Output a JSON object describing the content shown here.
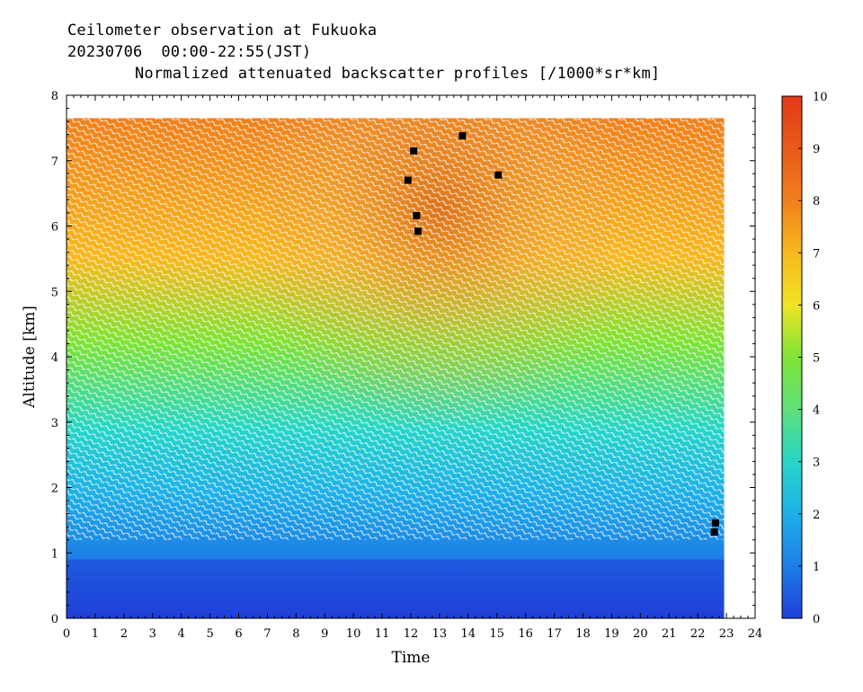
{
  "header": {
    "line1": "Ceilometer observation at Fukuoka",
    "line2": "20230706  00:00-22:55(JST)",
    "line3": "Normalized attenuated backscatter profiles [/1000*sr*km]"
  },
  "chart_data": {
    "type": "heatmap",
    "title": "Normalized attenuated backscatter profiles [/1000*sr*km]",
    "xlabel": "Time",
    "ylabel": "Altitude [km]",
    "xlim": [
      0,
      24
    ],
    "ylim": [
      0,
      8
    ],
    "x_ticks": [
      "0",
      "1",
      "2",
      "3",
      "4",
      "5",
      "6",
      "7",
      "8",
      "9",
      "10",
      "11",
      "12",
      "13",
      "14",
      "15",
      "16",
      "17",
      "18",
      "19",
      "20",
      "21",
      "22",
      "23",
      "24"
    ],
    "y_ticks": [
      "0",
      "1",
      "2",
      "3",
      "4",
      "5",
      "6",
      "7",
      "8"
    ],
    "data_extent": {
      "time_end": 22.92,
      "altitude_top": 7.65
    },
    "colorbar": {
      "range": [
        0,
        10
      ],
      "ticks": [
        "0",
        "1",
        "2",
        "3",
        "4",
        "5",
        "6",
        "7",
        "8",
        "9",
        "10"
      ],
      "colors": [
        "#1f3fd8",
        "#1e7ee6",
        "#1eb0e8",
        "#27d6c7",
        "#5fe07a",
        "#7ee336",
        "#f0e424",
        "#f8b81d",
        "#f0801c",
        "#e85a1a",
        "#e23a16"
      ]
    },
    "missing_markers": [
      {
        "time": 12.1,
        "altitude": 7.15
      },
      {
        "time": 13.8,
        "altitude": 7.38
      },
      {
        "time": 11.9,
        "altitude": 6.7
      },
      {
        "time": 15.05,
        "altitude": 6.78
      },
      {
        "time": 12.2,
        "altitude": 6.16
      },
      {
        "time": 12.25,
        "altitude": 5.92
      },
      {
        "time": 22.62,
        "altitude": 1.46
      },
      {
        "time": 22.58,
        "altitude": 1.32
      }
    ]
  }
}
